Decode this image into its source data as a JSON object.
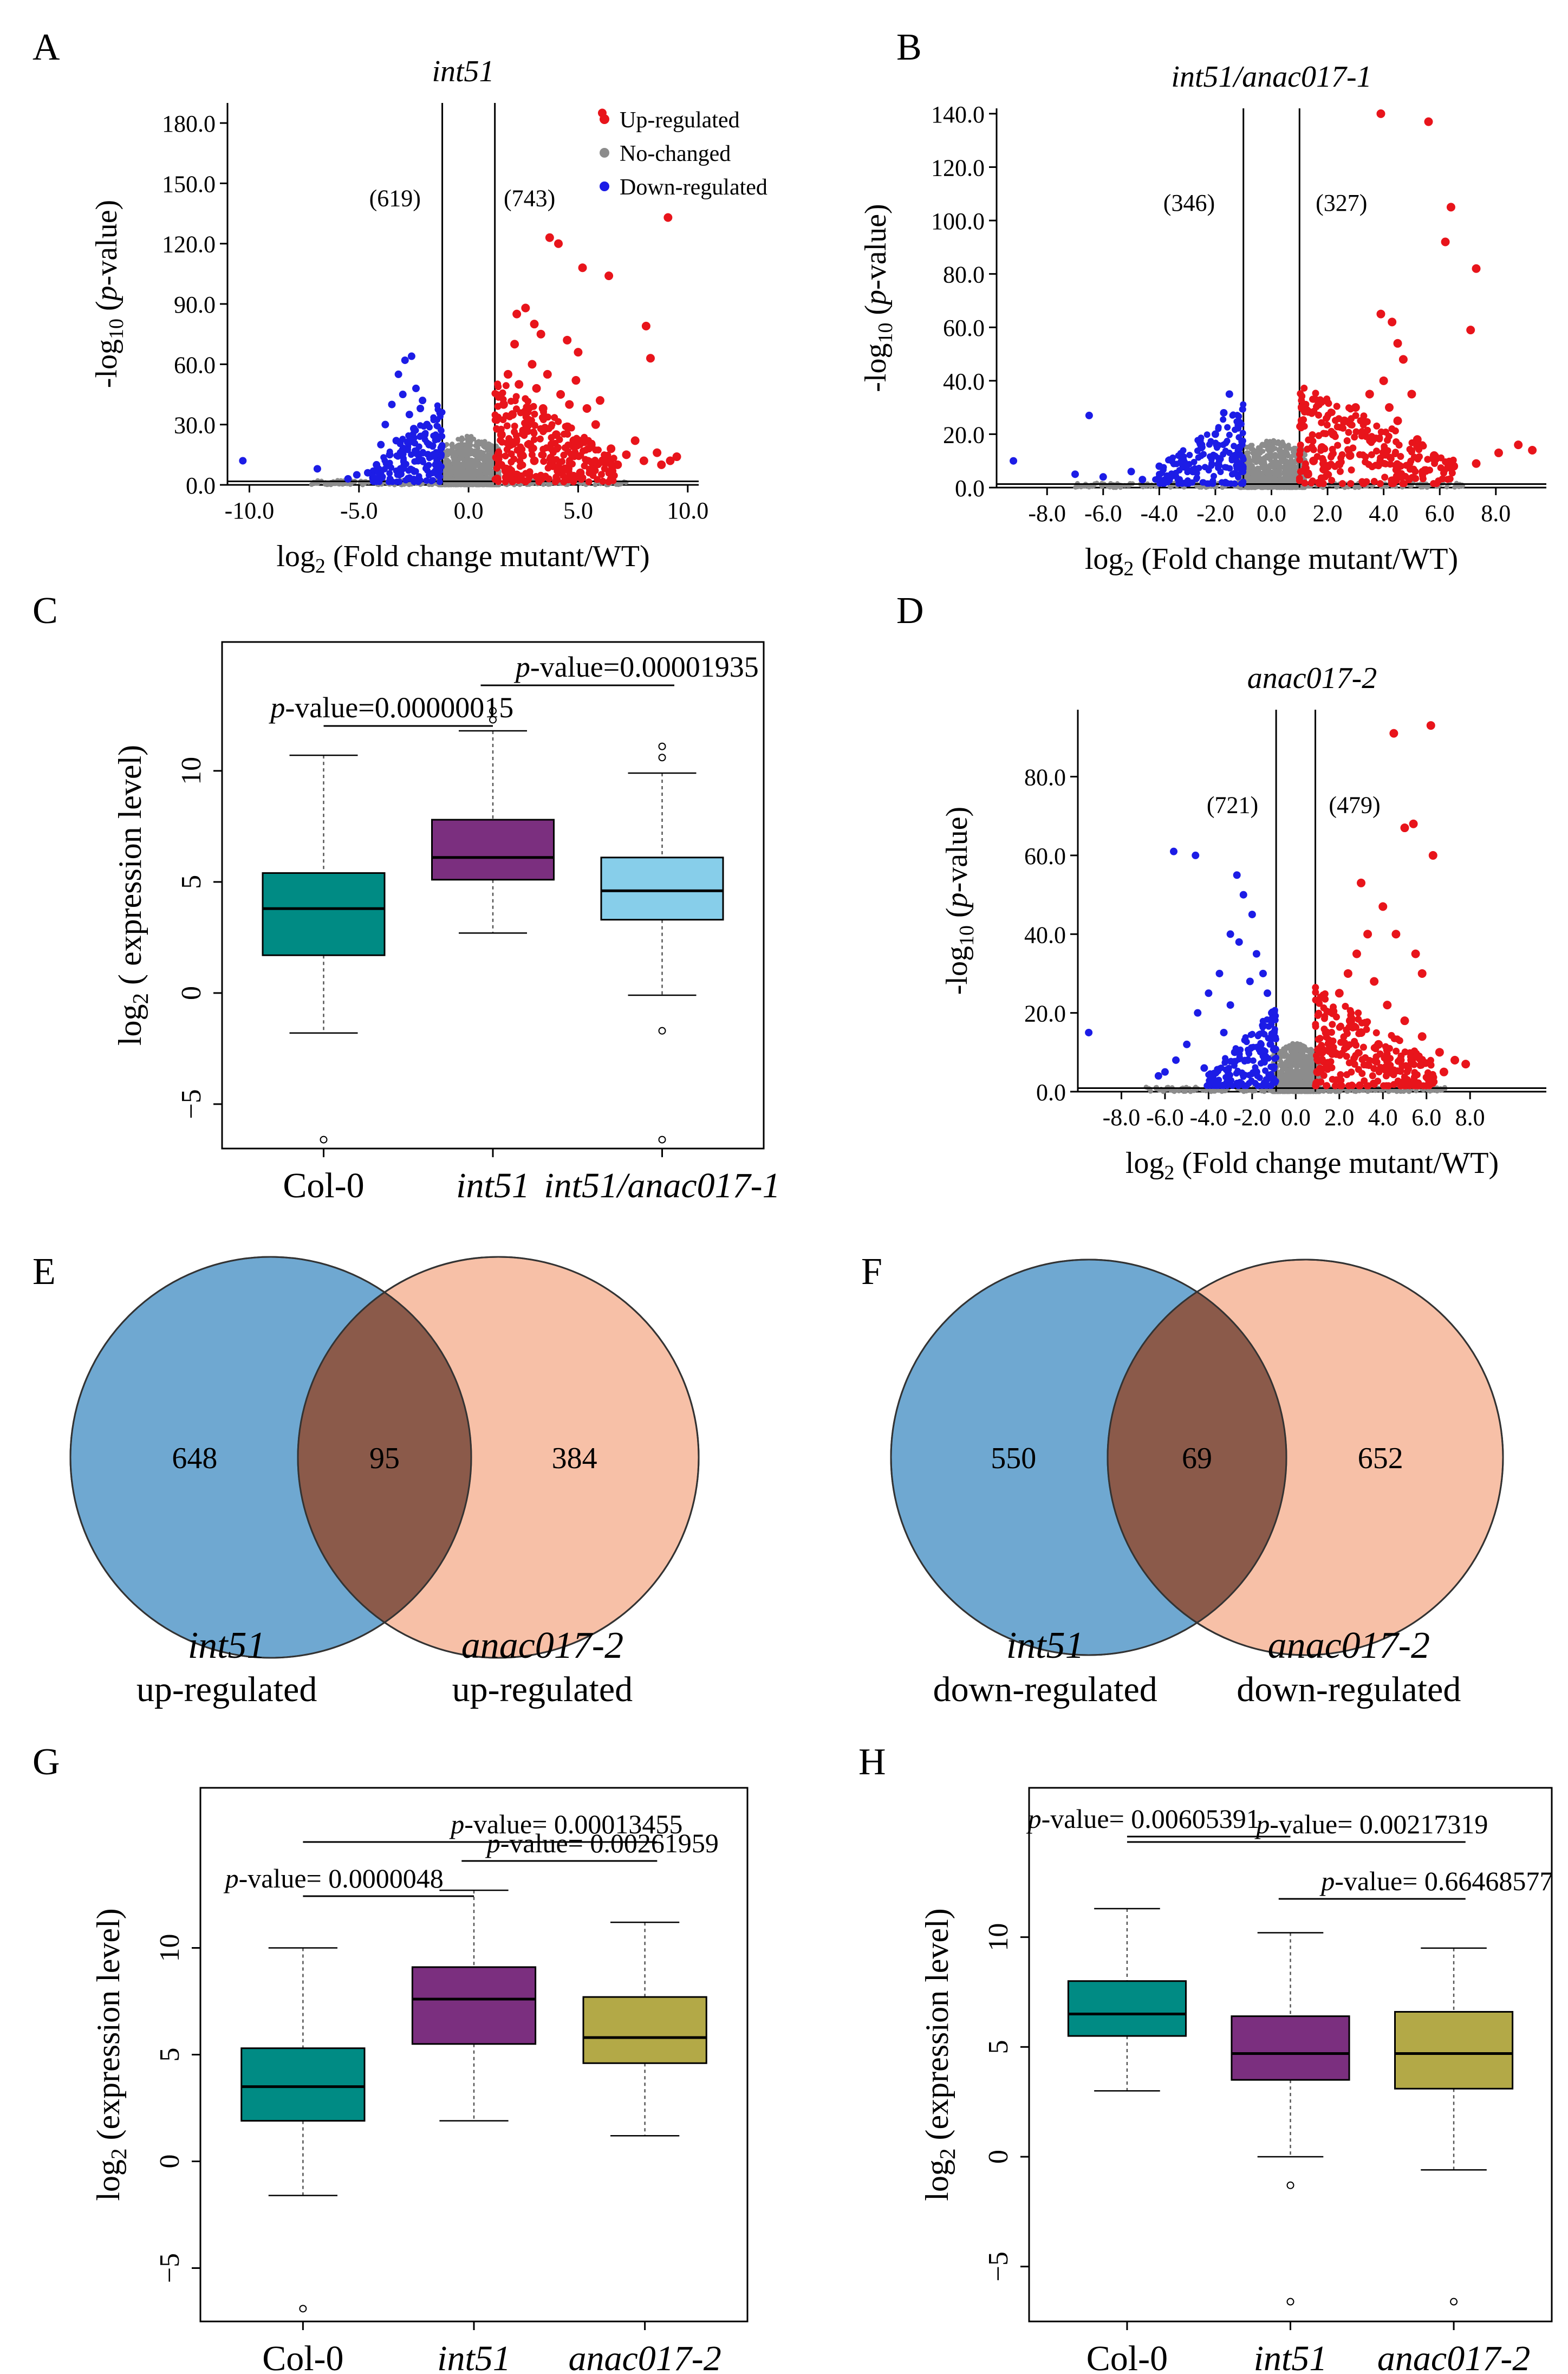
{
  "chart_data": [
    {
      "panel": "A",
      "type": "scatter",
      "subtype": "volcano",
      "title": "int51",
      "xlabel": "log2 (Fold change mutant/WT)",
      "ylabel": "-log10 (p-value)",
      "xlim": [
        -11,
        10.5
      ],
      "ylim": [
        0,
        190
      ],
      "xticks": [
        -10,
        -5,
        0,
        5,
        10
      ],
      "xtick_labels": [
        "-10.0",
        "-5.0",
        "0.0",
        "5.0",
        "10.0"
      ],
      "yticks": [
        0,
        30,
        60,
        90,
        120,
        150,
        180
      ],
      "ytick_labels": [
        "0.0",
        "30.0",
        "60.0",
        "90.0",
        "120.0",
        "150.0",
        "180.0"
      ],
      "vlines": [
        -1.2,
        1.2
      ],
      "hline": 1.3,
      "count_down": "(619)",
      "count_up": "(743)",
      "legend": [
        "Up-regulated",
        "No-changed",
        "Down-regulated"
      ],
      "colors": {
        "up": "#e8141b",
        "none": "#8c8c8c",
        "down": "#1c1ce6"
      },
      "up_points": [
        [
          6.1,
          185
        ],
        [
          9.1,
          133
        ],
        [
          3.7,
          123
        ],
        [
          4.1,
          120
        ],
        [
          5.2,
          108
        ],
        [
          6.4,
          104
        ],
        [
          8.1,
          79
        ],
        [
          8.3,
          63
        ],
        [
          2.2,
          85
        ],
        [
          2.6,
          88
        ],
        [
          3.0,
          80
        ],
        [
          2.1,
          70
        ],
        [
          2.9,
          60
        ],
        [
          3.3,
          75
        ],
        [
          4.5,
          72
        ],
        [
          5.0,
          66
        ],
        [
          1.8,
          55
        ],
        [
          2.3,
          50
        ],
        [
          3.1,
          48
        ],
        [
          3.6,
          55
        ],
        [
          4.2,
          45
        ],
        [
          4.6,
          40
        ],
        [
          5.4,
          38
        ],
        [
          6.0,
          42
        ],
        [
          1.6,
          40
        ],
        [
          2.0,
          35
        ],
        [
          2.7,
          30
        ],
        [
          3.5,
          28
        ],
        [
          4.0,
          25
        ],
        [
          4.8,
          22
        ],
        [
          5.6,
          20
        ],
        [
          6.5,
          18
        ],
        [
          7.2,
          15
        ],
        [
          8.0,
          12
        ],
        [
          8.8,
          10
        ],
        [
          9.5,
          14
        ],
        [
          1.5,
          25
        ],
        [
          1.9,
          20
        ],
        [
          2.4,
          15
        ],
        [
          3.0,
          12
        ],
        [
          3.8,
          10
        ],
        [
          4.4,
          8
        ],
        [
          5.1,
          6
        ],
        [
          1.4,
          10
        ],
        [
          1.7,
          7
        ],
        [
          2.2,
          5
        ],
        [
          1.3,
          3
        ],
        [
          2.8,
          20
        ],
        [
          3.4,
          38
        ],
        [
          4.9,
          52
        ],
        [
          5.8,
          30
        ],
        [
          6.8,
          10
        ],
        [
          7.6,
          22
        ],
        [
          8.6,
          16
        ],
        [
          9.2,
          12
        ]
      ],
      "down_points": [
        [
          -10.3,
          12
        ],
        [
          -6.9,
          8
        ],
        [
          -5.1,
          5
        ],
        [
          -4.0,
          20
        ],
        [
          -3.8,
          30
        ],
        [
          -3.5,
          40
        ],
        [
          -3.2,
          55
        ],
        [
          -2.9,
          62
        ],
        [
          -2.6,
          64
        ],
        [
          -2.4,
          48
        ],
        [
          -2.2,
          38
        ],
        [
          -3.0,
          45
        ],
        [
          -2.7,
          35
        ],
        [
          -2.0,
          25
        ],
        [
          -1.8,
          20
        ],
        [
          -1.6,
          15
        ],
        [
          -1.5,
          10
        ],
        [
          -2.3,
          12
        ],
        [
          -2.8,
          18
        ],
        [
          -3.3,
          22
        ],
        [
          -3.6,
          15
        ],
        [
          -4.2,
          10
        ],
        [
          -4.6,
          6
        ],
        [
          -1.9,
          30
        ],
        [
          -1.4,
          5
        ],
        [
          -2.5,
          28
        ],
        [
          -3.1,
          8
        ],
        [
          -5.5,
          3
        ],
        [
          -2.1,
          42
        ]
      ]
    },
    {
      "panel": "B",
      "type": "scatter",
      "subtype": "volcano",
      "title": "int51/anac017-1",
      "xlabel": "log2 (Fold change mutant/WT)",
      "ylabel": "-log10 (p-value)",
      "xlim": [
        -9.8,
        9.8
      ],
      "ylim": [
        0,
        142
      ],
      "xticks": [
        -8,
        -6,
        -4,
        -2,
        0,
        2,
        4,
        6,
        8
      ],
      "xtick_labels": [
        "-8.0",
        "-6.0",
        "-4.0",
        "-2.0",
        "0.0",
        "2.0",
        "4.0",
        "6.0",
        "8.0"
      ],
      "yticks": [
        0,
        20,
        40,
        60,
        80,
        100,
        120,
        140
      ],
      "ytick_labels": [
        "0.0",
        "20.0",
        "40.0",
        "60.0",
        "80.0",
        "100.0",
        "120.0",
        "140.0"
      ],
      "vlines": [
        -1,
        1
      ],
      "hline": 1.3,
      "count_down": "(346)",
      "count_up": "(327)",
      "colors": {
        "up": "#e8141b",
        "none": "#8c8c8c",
        "down": "#1c1ce6"
      },
      "up_points": [
        [
          3.9,
          140
        ],
        [
          5.6,
          137
        ],
        [
          6.4,
          105
        ],
        [
          6.2,
          92
        ],
        [
          7.3,
          82
        ],
        [
          7.1,
          59
        ],
        [
          3.9,
          65
        ],
        [
          4.3,
          62
        ],
        [
          4.5,
          54
        ],
        [
          4.7,
          48
        ],
        [
          4.0,
          40
        ],
        [
          3.5,
          35
        ],
        [
          3.0,
          30
        ],
        [
          2.6,
          25
        ],
        [
          2.2,
          20
        ],
        [
          1.8,
          15
        ],
        [
          1.5,
          10
        ],
        [
          1.3,
          5
        ],
        [
          4.5,
          25
        ],
        [
          5.2,
          18
        ],
        [
          5.8,
          12
        ],
        [
          6.5,
          8
        ],
        [
          7.3,
          9
        ],
        [
          8.1,
          13
        ],
        [
          8.8,
          16
        ],
        [
          9.3,
          14
        ],
        [
          2.0,
          8
        ],
        [
          2.8,
          12
        ],
        [
          3.6,
          18
        ],
        [
          4.2,
          30
        ],
        [
          5.0,
          35
        ]
      ],
      "down_points": [
        [
          -9.2,
          10
        ],
        [
          -6.5,
          27
        ],
        [
          -7.0,
          5
        ],
        [
          -6.0,
          4
        ],
        [
          -5.0,
          6
        ],
        [
          -4.0,
          8
        ],
        [
          -3.2,
          10
        ],
        [
          -2.5,
          15
        ],
        [
          -2.0,
          20
        ],
        [
          -1.7,
          28
        ],
        [
          -1.5,
          35
        ],
        [
          -1.3,
          12
        ],
        [
          -2.8,
          6
        ],
        [
          -3.6,
          4
        ],
        [
          -4.6,
          3
        ]
      ]
    },
    {
      "panel": "C",
      "type": "box",
      "ylabel": "log2 ( expression level)",
      "categories": [
        "Col-0",
        "int51",
        "int51/anac017-1"
      ],
      "italic": [
        false,
        true,
        true
      ],
      "colors": [
        "#008b84",
        "#7b2f7f",
        "#87ceea"
      ],
      "ylim": [
        -7,
        15.8
      ],
      "yticks": [
        -5,
        0,
        5,
        10
      ],
      "ytick_labels": [
        "−5",
        "0",
        "5",
        "10"
      ],
      "boxes": [
        {
          "whislo": -1.8,
          "q1": 1.7,
          "med": 3.8,
          "q3": 5.4,
          "whishi": 10.7,
          "fliers": [
            -6.6
          ]
        },
        {
          "whislo": 2.7,
          "q1": 5.1,
          "med": 6.1,
          "q3": 7.8,
          "whishi": 11.8,
          "fliers": [
            12.3,
            12.7
          ]
        },
        {
          "whislo": -0.1,
          "q1": 3.3,
          "med": 4.6,
          "q3": 6.1,
          "whishi": 9.9,
          "fliers": [
            -1.7,
            -6.6,
            10.6,
            11.1
          ]
        }
      ],
      "comparisons": [
        {
          "from": 0,
          "to": 1,
          "label": "p-value=0.00000015"
        },
        {
          "from": 1,
          "to": 2,
          "label": "p-value=0.00001935"
        }
      ]
    },
    {
      "panel": "D",
      "type": "scatter",
      "subtype": "volcano",
      "title": "anac017-2",
      "xlabel": "log2 (Fold change mutant/WT)",
      "ylabel": "-log10 (p-value)",
      "xlim": [
        -10,
        11.5
      ],
      "ylim": [
        0,
        97
      ],
      "xticks": [
        -8,
        -6,
        -4,
        -2,
        0,
        2,
        4,
        6,
        8
      ],
      "xtick_labels": [
        "-8.0",
        "-6.0",
        "-4.0",
        "-2.0",
        "0.0",
        "2.0",
        "4.0",
        "6.0",
        "8.0"
      ],
      "yticks": [
        0,
        20,
        40,
        60,
        80
      ],
      "ytick_labels": [
        "0.0",
        "20.0",
        "40.0",
        "60.0",
        "80.0"
      ],
      "vlines": [
        -0.9,
        0.9
      ],
      "hline": 1.3,
      "count_down": "(721)",
      "count_up": "(479)",
      "colors": {
        "up": "#e8141b",
        "none": "#8c8c8c",
        "down": "#1c1ce6"
      },
      "up_points": [
        [
          6.2,
          93
        ],
        [
          4.5,
          91
        ],
        [
          5.0,
          67
        ],
        [
          5.4,
          68
        ],
        [
          6.3,
          60
        ],
        [
          3.0,
          53
        ],
        [
          4.0,
          47
        ],
        [
          4.6,
          40
        ],
        [
          5.5,
          35
        ],
        [
          3.3,
          40
        ],
        [
          2.8,
          35
        ],
        [
          2.4,
          30
        ],
        [
          2.0,
          25
        ],
        [
          1.7,
          20
        ],
        [
          1.4,
          15
        ],
        [
          1.2,
          10
        ],
        [
          1.0,
          5
        ],
        [
          3.6,
          28
        ],
        [
          4.2,
          22
        ],
        [
          5.0,
          18
        ],
        [
          5.8,
          14
        ],
        [
          6.6,
          10
        ],
        [
          7.3,
          8
        ],
        [
          7.8,
          7
        ],
        [
          6.8,
          5
        ],
        [
          3.0,
          15
        ],
        [
          3.8,
          12
        ],
        [
          4.8,
          8
        ],
        [
          2.5,
          18
        ],
        [
          5.8,
          30
        ]
      ],
      "down_points": [
        [
          -9.5,
          15
        ],
        [
          -5.6,
          61
        ],
        [
          -4.6,
          60
        ],
        [
          -2.7,
          55
        ],
        [
          -2.4,
          50
        ],
        [
          -2.0,
          45
        ],
        [
          -3.0,
          40
        ],
        [
          -2.6,
          38
        ],
        [
          -1.8,
          35
        ],
        [
          -1.5,
          30
        ],
        [
          -1.3,
          25
        ],
        [
          -1.1,
          20
        ],
        [
          -1.0,
          15
        ],
        [
          -3.5,
          30
        ],
        [
          -4.0,
          25
        ],
        [
          -4.5,
          20
        ],
        [
          -5.0,
          12
        ],
        [
          -5.5,
          8
        ],
        [
          -6.0,
          5
        ],
        [
          -6.3,
          4
        ],
        [
          -3.3,
          15
        ],
        [
          -2.8,
          10
        ],
        [
          -2.2,
          8
        ],
        [
          -1.8,
          5
        ],
        [
          -4.2,
          6
        ],
        [
          -3.0,
          22
        ],
        [
          -2.1,
          28
        ],
        [
          -1.6,
          12
        ]
      ]
    },
    {
      "panel": "E",
      "type": "venn",
      "left_value": "648",
      "overlap_value": "95",
      "right_value": "384",
      "left_name": "int51",
      "left_sub": "up-regulated",
      "right_name": "anac017-2",
      "right_sub": "up-regulated",
      "left_color": "#6fa8d1",
      "right_color": "#f08d5e"
    },
    {
      "panel": "F",
      "type": "venn",
      "left_value": "550",
      "overlap_value": "69",
      "right_value": "652",
      "left_name": "int51",
      "left_sub": "down-regulated",
      "right_name": "anac017-2",
      "right_sub": "down-regulated",
      "left_color": "#6fa8d1",
      "right_color": "#f08d5e"
    },
    {
      "panel": "G",
      "type": "box",
      "ylabel": "log2 (expression level)",
      "categories": [
        "Col-0",
        "int51",
        "anac017-2"
      ],
      "italic": [
        false,
        true,
        true
      ],
      "colors": [
        "#008b84",
        "#7b2f7f",
        "#b3a947"
      ],
      "ylim": [
        -7.5,
        17.5
      ],
      "yticks": [
        -5,
        0,
        5,
        10
      ],
      "ytick_labels": [
        "−5",
        "0",
        "5",
        "10"
      ],
      "boxes": [
        {
          "whislo": -1.6,
          "q1": 1.9,
          "med": 3.5,
          "q3": 5.3,
          "whishi": 10.0,
          "fliers": [
            -6.9
          ]
        },
        {
          "whislo": 1.9,
          "q1": 5.5,
          "med": 7.6,
          "q3": 9.1,
          "whishi": 12.7,
          "fliers": []
        },
        {
          "whislo": 1.2,
          "q1": 4.6,
          "med": 5.8,
          "q3": 7.7,
          "whishi": 11.2,
          "fliers": []
        }
      ],
      "comparisons": [
        {
          "from": 0,
          "to": 1,
          "label": "p-value= 0.0000048"
        },
        {
          "from": 1,
          "to": 2,
          "label": "p-value= 0.00261959"
        },
        {
          "from": 0,
          "to": 2,
          "label": "p-value= 0.00013455"
        }
      ]
    },
    {
      "panel": "H",
      "type": "box",
      "ylabel": "log2 (expression level)",
      "categories": [
        "Col-0",
        "int51",
        "anac017-2"
      ],
      "italic": [
        false,
        true,
        true
      ],
      "colors": [
        "#008b84",
        "#7b2f7f",
        "#b3a947"
      ],
      "ylim": [
        -7.5,
        16.8
      ],
      "yticks": [
        -5,
        0,
        5,
        10
      ],
      "ytick_labels": [
        "−5",
        "0",
        "5",
        "10"
      ],
      "boxes": [
        {
          "whislo": 3.0,
          "q1": 5.5,
          "med": 6.5,
          "q3": 8.0,
          "whishi": 11.3,
          "fliers": []
        },
        {
          "whislo": 0.0,
          "q1": 3.5,
          "med": 4.7,
          "q3": 6.4,
          "whishi": 10.2,
          "fliers": [
            -1.3,
            -6.6
          ]
        },
        {
          "whislo": -0.6,
          "q1": 3.1,
          "med": 4.7,
          "q3": 6.6,
          "whishi": 9.5,
          "fliers": [
            -6.6
          ]
        }
      ],
      "comparisons": [
        {
          "from": 0,
          "to": 1,
          "label": "p-value= 0.00605391"
        },
        {
          "from": 1,
          "to": 2,
          "label": "p-value= 0.66468577"
        },
        {
          "from": 0,
          "to": 2,
          "label": "p-value= 0.00217319"
        }
      ]
    }
  ]
}
